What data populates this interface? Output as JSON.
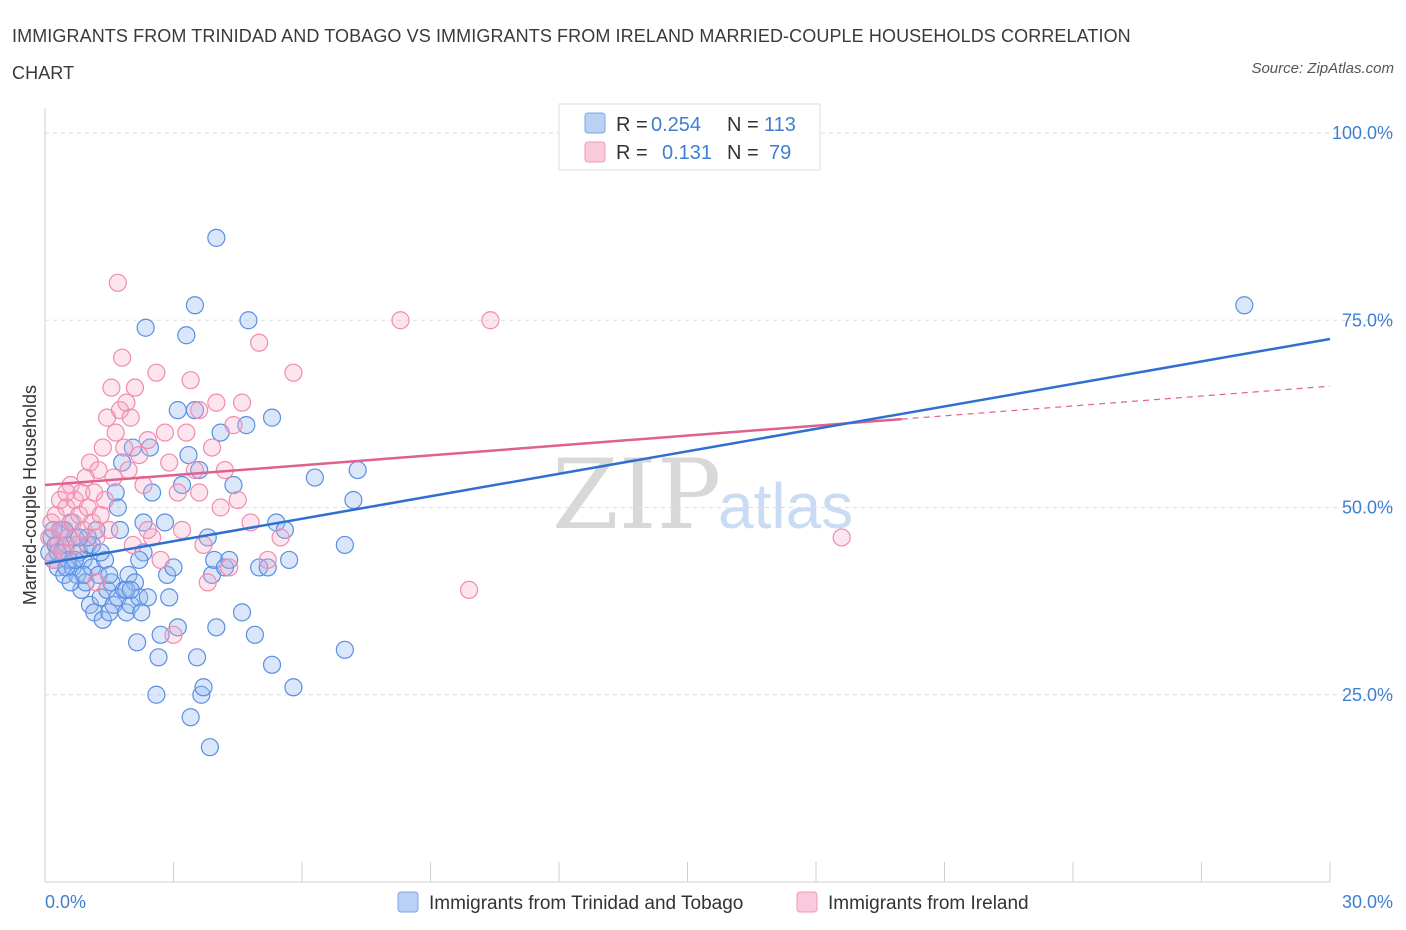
{
  "title": "IMMIGRANTS FROM TRINIDAD AND TOBAGO VS IMMIGRANTS FROM IRELAND MARRIED-COUPLE HOUSEHOLDS CORRELATION CHART",
  "source": "Source: ZipAtlas.com",
  "watermark": {
    "part1": "ZIP",
    "part2": "atlas"
  },
  "colors": {
    "blue": "#5b8ee0",
    "blue_line": "#2f6fd0",
    "pink": "#f08cae",
    "pink_line": "#e0608f",
    "tick_text": "#3f7fd1"
  },
  "legend": [
    {
      "r_label": "R =",
      "r_value": "0.254",
      "n_label": "N =",
      "n_value": "113"
    },
    {
      "r_label": "R =",
      "r_value": "0.131",
      "n_label": "N =",
      "n_value": "79"
    }
  ],
  "chart_data": {
    "type": "scatter",
    "title": "IMMIGRANTS FROM TRINIDAD AND TOBAGO VS IMMIGRANTS FROM IRELAND MARRIED-COUPLE HOUSEHOLDS CORRELATION CHART",
    "xlabel": "",
    "ylabel": "Married-couple Households",
    "xlim": [
      0,
      30
    ],
    "ylim": [
      0,
      100
    ],
    "x_tick_labels": [
      "0.0%",
      "30.0%"
    ],
    "y_tick_labels": [
      "100.0%",
      "75.0%",
      "50.0%",
      "25.0%"
    ],
    "y_ticks": [
      100,
      75,
      50,
      25
    ],
    "grid": true,
    "series": [
      {
        "name": "Immigrants from Trinidad and Tobago",
        "color": "#5b8ee0",
        "R": 0.254,
        "N": 113,
        "trend": {
          "x": [
            0,
            30
          ],
          "y": [
            42.5,
            72.5
          ]
        },
        "points": [
          [
            0.1,
            44
          ],
          [
            0.15,
            46
          ],
          [
            0.2,
            43
          ],
          [
            0.25,
            45
          ],
          [
            0.3,
            42
          ],
          [
            0.35,
            47
          ],
          [
            0.4,
            44
          ],
          [
            0.45,
            41
          ],
          [
            0.5,
            45
          ],
          [
            0.55,
            43
          ],
          [
            0.6,
            48
          ],
          [
            0.65,
            42
          ],
          [
            0.7,
            46
          ],
          [
            0.75,
            41
          ],
          [
            0.8,
            44
          ],
          [
            0.85,
            39
          ],
          [
            0.9,
            43
          ],
          [
            0.95,
            40
          ],
          [
            1.0,
            45
          ],
          [
            1.05,
            37
          ],
          [
            1.1,
            42
          ],
          [
            1.15,
            36
          ],
          [
            1.2,
            47
          ],
          [
            1.25,
            41
          ],
          [
            1.3,
            38
          ],
          [
            1.35,
            35
          ],
          [
            1.4,
            43
          ],
          [
            1.45,
            39
          ],
          [
            1.5,
            36
          ],
          [
            1.55,
            40
          ],
          [
            1.6,
            37
          ],
          [
            1.65,
            52
          ],
          [
            1.7,
            38
          ],
          [
            1.75,
            47
          ],
          [
            1.8,
            56
          ],
          [
            1.85,
            39
          ],
          [
            1.9,
            36
          ],
          [
            1.95,
            41
          ],
          [
            2.0,
            37
          ],
          [
            2.05,
            58
          ],
          [
            2.1,
            40
          ],
          [
            2.15,
            32
          ],
          [
            2.2,
            38
          ],
          [
            2.25,
            36
          ],
          [
            2.3,
            44
          ],
          [
            2.35,
            74
          ],
          [
            2.4,
            38
          ],
          [
            2.45,
            58
          ],
          [
            2.5,
            52
          ],
          [
            2.6,
            25
          ],
          [
            2.65,
            30
          ],
          [
            2.7,
            33
          ],
          [
            2.8,
            48
          ],
          [
            2.85,
            41
          ],
          [
            2.9,
            38
          ],
          [
            3.0,
            42
          ],
          [
            3.1,
            63
          ],
          [
            3.2,
            53
          ],
          [
            3.3,
            73
          ],
          [
            3.4,
            22
          ],
          [
            3.5,
            63
          ],
          [
            3.5,
            77
          ],
          [
            3.55,
            30
          ],
          [
            3.6,
            55
          ],
          [
            3.65,
            25
          ],
          [
            3.7,
            26
          ],
          [
            3.8,
            46
          ],
          [
            3.85,
            18
          ],
          [
            3.9,
            41
          ],
          [
            3.95,
            43
          ],
          [
            4.0,
            34
          ],
          [
            4.1,
            60
          ],
          [
            4.2,
            42
          ],
          [
            4.3,
            43
          ],
          [
            4.4,
            53
          ],
          [
            4.6,
            36
          ],
          [
            4.7,
            61
          ],
          [
            4.75,
            75
          ],
          [
            4.9,
            33
          ],
          [
            5.0,
            42
          ],
          [
            5.2,
            42
          ],
          [
            5.3,
            29
          ],
          [
            5.4,
            48
          ],
          [
            5.6,
            47
          ],
          [
            5.7,
            43
          ],
          [
            5.8,
            26
          ],
          [
            5.3,
            62
          ],
          [
            6.3,
            54
          ],
          [
            7.2,
            51
          ],
          [
            7.3,
            55
          ],
          [
            7.0,
            45
          ],
          [
            7.0,
            31
          ],
          [
            0.5,
            42
          ],
          [
            0.3,
            44
          ],
          [
            0.45,
            47
          ],
          [
            0.7,
            43
          ],
          [
            0.9,
            41
          ],
          [
            1.1,
            45
          ],
          [
            1.3,
            44
          ],
          [
            1.5,
            41
          ],
          [
            1.9,
            39
          ],
          [
            2.2,
            43
          ],
          [
            0.6,
            40
          ],
          [
            1.0,
            46
          ],
          [
            4.0,
            86
          ],
          [
            28.0,
            77
          ],
          [
            2.3,
            48
          ],
          [
            0.2,
            47
          ],
          [
            1.7,
            50
          ],
          [
            2.0,
            39
          ],
          [
            3.1,
            34
          ],
          [
            0.8,
            46
          ],
          [
            3.35,
            57
          ]
        ]
      },
      {
        "name": "Immigrants from Ireland",
        "color": "#f08cae",
        "R": 0.131,
        "N": 79,
        "trend": {
          "x": [
            0,
            20
          ],
          "y": [
            53,
            61.8
          ]
        },
        "trend_dashed": {
          "x": [
            20,
            30
          ],
          "y": [
            61.8,
            66.2
          ]
        },
        "points": [
          [
            0.1,
            46
          ],
          [
            0.15,
            48
          ],
          [
            0.2,
            43
          ],
          [
            0.25,
            49
          ],
          [
            0.3,
            45
          ],
          [
            0.35,
            51
          ],
          [
            0.4,
            47
          ],
          [
            0.45,
            44
          ],
          [
            0.5,
            50
          ],
          [
            0.55,
            46
          ],
          [
            0.6,
            53
          ],
          [
            0.65,
            48
          ],
          [
            0.7,
            51
          ],
          [
            0.75,
            45
          ],
          [
            0.8,
            49
          ],
          [
            0.85,
            52
          ],
          [
            0.9,
            47
          ],
          [
            0.95,
            54
          ],
          [
            1.0,
            50
          ],
          [
            1.05,
            56
          ],
          [
            1.1,
            48
          ],
          [
            1.15,
            52
          ],
          [
            1.2,
            46
          ],
          [
            1.25,
            55
          ],
          [
            1.3,
            49
          ],
          [
            1.35,
            58
          ],
          [
            1.4,
            51
          ],
          [
            1.45,
            62
          ],
          [
            1.5,
            47
          ],
          [
            1.55,
            66
          ],
          [
            1.6,
            54
          ],
          [
            1.65,
            60
          ],
          [
            1.7,
            80
          ],
          [
            1.75,
            63
          ],
          [
            1.8,
            70
          ],
          [
            1.85,
            58
          ],
          [
            1.9,
            64
          ],
          [
            1.95,
            55
          ],
          [
            2.0,
            62
          ],
          [
            2.05,
            45
          ],
          [
            2.1,
            66
          ],
          [
            2.2,
            57
          ],
          [
            2.3,
            53
          ],
          [
            2.4,
            59
          ],
          [
            2.5,
            46
          ],
          [
            2.6,
            68
          ],
          [
            2.7,
            43
          ],
          [
            2.8,
            60
          ],
          [
            2.9,
            56
          ],
          [
            3.0,
            33
          ],
          [
            3.1,
            52
          ],
          [
            3.2,
            47
          ],
          [
            3.3,
            60
          ],
          [
            3.4,
            67
          ],
          [
            3.5,
            55
          ],
          [
            3.6,
            63
          ],
          [
            3.7,
            45
          ],
          [
            3.8,
            40
          ],
          [
            3.9,
            58
          ],
          [
            4.0,
            64
          ],
          [
            4.1,
            50
          ],
          [
            4.2,
            55
          ],
          [
            4.3,
            42
          ],
          [
            4.4,
            61
          ],
          [
            4.5,
            51
          ],
          [
            4.6,
            64
          ],
          [
            4.8,
            48
          ],
          [
            5.0,
            72
          ],
          [
            5.2,
            43
          ],
          [
            5.5,
            46
          ],
          [
            5.8,
            68
          ],
          [
            8.3,
            75
          ],
          [
            10.4,
            75
          ],
          [
            9.9,
            39
          ],
          [
            18.6,
            46
          ],
          [
            0.5,
            52
          ],
          [
            1.2,
            40
          ],
          [
            2.4,
            47
          ],
          [
            3.6,
            52
          ]
        ]
      }
    ]
  },
  "bottom_legend": [
    "Immigrants from Trinidad and Tobago",
    "Immigrants from Ireland"
  ]
}
